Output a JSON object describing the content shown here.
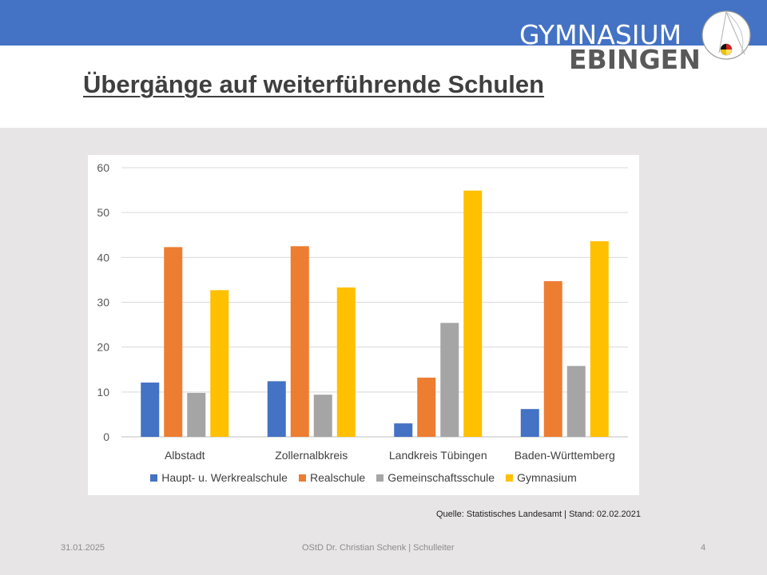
{
  "slide": {
    "title": "Übergänge auf weiterführende Schulen",
    "logo_line1": "GYMNASIUM",
    "logo_line2": "EBINGEN",
    "source": "Quelle: Statistisches Landesamt | Stand: 02.02.2021",
    "footer_date": "31.01.2025",
    "footer_center": "OStD Dr. Christian Schenk | Schulleiter",
    "footer_page": "4"
  },
  "colors": {
    "topbar": "#4472c4",
    "background": "#e7e5e5"
  },
  "chart_data": {
    "type": "bar",
    "categories": [
      "Albstadt",
      "Zollernalbkreis",
      "Landkreis Tübingen",
      "Baden-Württemberg"
    ],
    "series": [
      {
        "name": "Haupt- u. Werkrealschule",
        "color": "#4472c4",
        "values": [
          12.1,
          12.4,
          3.0,
          6.2
        ]
      },
      {
        "name": "Realschule",
        "color": "#ed7d31",
        "values": [
          42.3,
          42.5,
          13.2,
          34.7
        ]
      },
      {
        "name": "Gemeinschaftsschule",
        "color": "#a5a5a5",
        "values": [
          9.8,
          9.4,
          25.4,
          15.8
        ]
      },
      {
        "name": "Gymnasium",
        "color": "#ffc000",
        "values": [
          32.7,
          33.3,
          54.9,
          43.6
        ]
      }
    ],
    "yticks": [
      0,
      10,
      20,
      30,
      40,
      50,
      60
    ],
    "ylim": [
      0,
      60
    ],
    "grid": true,
    "legend_position": "bottom"
  }
}
